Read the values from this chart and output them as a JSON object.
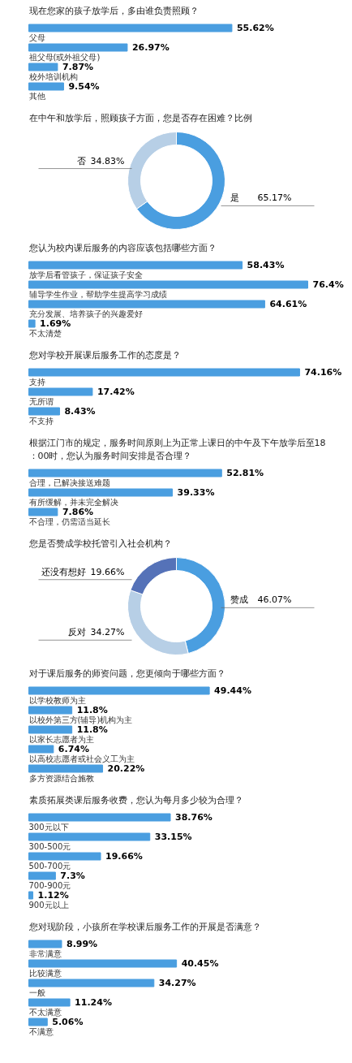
{
  "chart_data": [
    {
      "type": "bar",
      "orientation": "horizontal",
      "title": "现在您家的孩子放学后，多由谁负责照顾？",
      "categories": [
        "父母",
        "祖父母(或外祖父母)",
        "校外培训机构",
        "其他"
      ],
      "values": [
        55.62,
        26.97,
        7.87,
        9.54
      ],
      "value_labels": [
        "55.62%",
        "26.97%",
        "7.87%",
        "9.54%"
      ],
      "color": "#4a9ee0"
    },
    {
      "type": "donut",
      "title": "在中午和放学后，照顾孩子方面，您是否存在困难？比例",
      "categories": [
        "是",
        "否"
      ],
      "values": [
        65.17,
        34.83
      ],
      "value_labels": [
        "65.17%",
        "34.83%"
      ],
      "colors": [
        "#4a9ee0",
        "#b7cfe6"
      ]
    },
    {
      "type": "bar",
      "orientation": "horizontal",
      "title": "您认为校内课后服务的内容应该包括哪些方面？",
      "categories": [
        "放学后看管孩子，保证孩子安全",
        "辅导学生作业，帮助学生提高学习成绩",
        "充分发展、培养孩子的兴趣爱好",
        "不太清楚"
      ],
      "values": [
        58.43,
        76.4,
        64.61,
        1.69
      ],
      "value_labels": [
        "58.43%",
        "76.4%",
        "64.61%",
        "1.69%"
      ],
      "color": "#4a9ee0"
    },
    {
      "type": "bar",
      "orientation": "horizontal",
      "title": "您对学校开展课后服务工作的态度是？",
      "categories": [
        "支持",
        "无所谓",
        "不支持"
      ],
      "values": [
        74.16,
        17.42,
        8.43
      ],
      "value_labels": [
        "74.16%",
        "17.42%",
        "8.43%"
      ],
      "color": "#4a9ee0"
    },
    {
      "type": "bar",
      "orientation": "horizontal",
      "title": "根据江门市的规定，服务时间原则上为正常上课日的中午及下午放学后至18：00时，您认为服务时间安排是否合理？",
      "categories": [
        "合理，已解决接送难题",
        "有所缓解，并未完全解决",
        "不合理，仍需适当延长"
      ],
      "values": [
        52.81,
        39.33,
        7.86
      ],
      "value_labels": [
        "52.81%",
        "39.33%",
        "7.86%"
      ],
      "color": "#4a9ee0"
    },
    {
      "type": "donut",
      "title": "您是否赞成学校托管引入社会机构？",
      "categories": [
        "赞成",
        "反对",
        "还没有想好"
      ],
      "values": [
        46.07,
        34.27,
        19.66
      ],
      "value_labels": [
        "46.07%",
        "34.27%",
        "19.66%"
      ],
      "colors": [
        "#4a9ee0",
        "#b7cfe6",
        "#5572b8"
      ]
    },
    {
      "type": "bar",
      "orientation": "horizontal",
      "title": "对于课后服务的师资问题，您更倾向于哪些方面？",
      "categories": [
        "以学校教师为主",
        "以校外第三方(辅导)机构为主",
        "以家长志愿者为主",
        "以高校志愿者或社会义工为主",
        "多方资源结合施教"
      ],
      "values": [
        49.44,
        11.8,
        11.8,
        6.74,
        20.22
      ],
      "value_labels": [
        "49.44%",
        "11.8%",
        "11.8%",
        "6.74%",
        "20.22%"
      ],
      "color": "#4a9ee0"
    },
    {
      "type": "bar",
      "orientation": "horizontal",
      "title": "素质拓展类课后服务收费，您认为每月多少较为合理？",
      "categories": [
        "300元以下",
        "300-500元",
        "500-700元",
        "700-900元",
        "900元以上"
      ],
      "values": [
        38.76,
        33.15,
        19.66,
        7.3,
        1.12
      ],
      "value_labels": [
        "38.76%",
        "33.15%",
        "19.66%",
        "7.3%",
        "1.12%"
      ],
      "color": "#4a9ee0"
    },
    {
      "type": "bar",
      "orientation": "horizontal",
      "title": "您对现阶段，小孩所在学校课后服务工作的开展是否满意？",
      "categories": [
        "非常满意",
        "比较满意",
        "一般",
        "不太满意",
        "不满意"
      ],
      "values": [
        8.99,
        40.45,
        34.27,
        11.24,
        5.06
      ],
      "value_labels": [
        "8.99%",
        "40.45%",
        "34.27%",
        "11.24%",
        "5.06%"
      ],
      "color": "#4a9ee0"
    }
  ]
}
